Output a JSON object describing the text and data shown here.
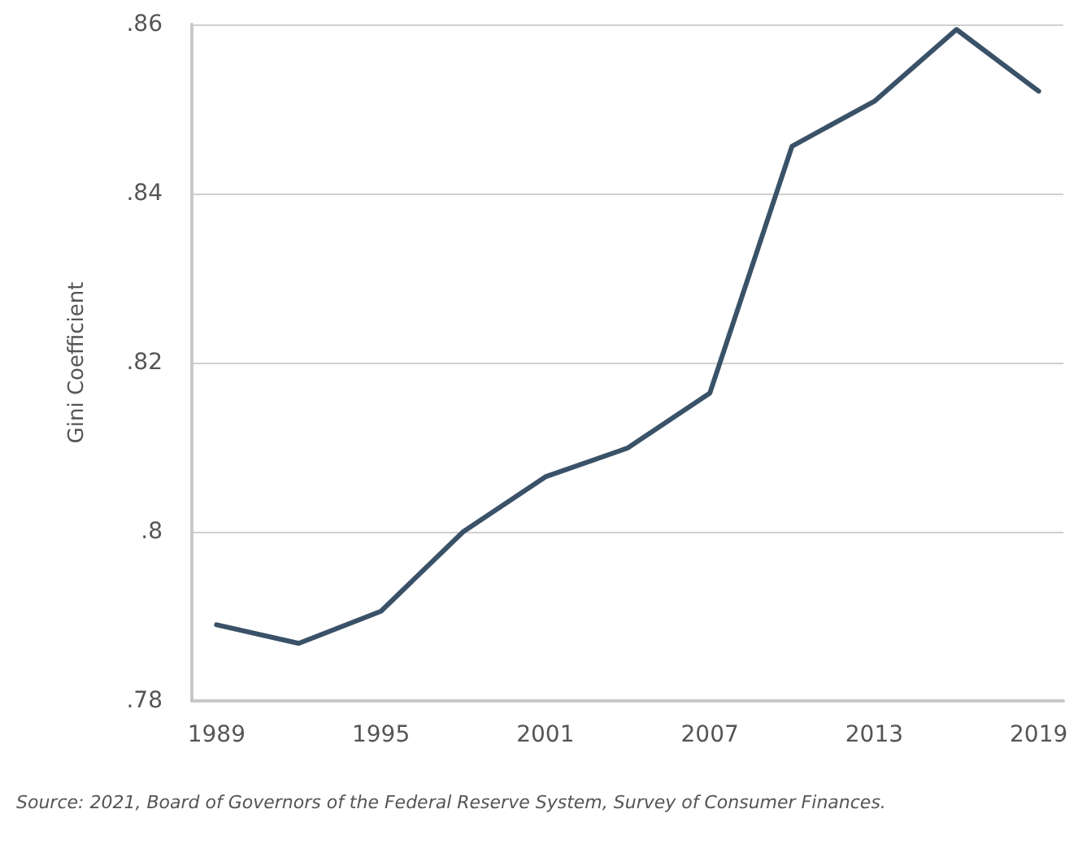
{
  "chart_data": {
    "type": "line",
    "ylabel": "Gini Coefficient",
    "annotations": [
      "Source: 2021, Board of Governors of the Federal Reserve System, Survey of Consumer Finances."
    ],
    "x": [
      1989,
      1992,
      1995,
      1998,
      2001,
      2004,
      2007,
      2010,
      2013,
      2016,
      2019
    ],
    "series": [
      {
        "color": "#3a5268",
        "values": [
          0.789,
          0.7868,
          0.7906,
          0.8,
          0.8065,
          0.8099,
          0.8164,
          0.8456,
          0.8509,
          0.8594,
          0.8521
        ]
      }
    ],
    "xlim": [
      1988.1,
      2019.9
    ],
    "xticks": [
      1989,
      1995,
      2001,
      2007,
      2013,
      2019
    ],
    "ylim": [
      0.78,
      0.86
    ],
    "yticks": [
      {
        "value": 0.78,
        "label": ".78"
      },
      {
        "value": 0.8,
        "label": ".8"
      },
      {
        "value": 0.82,
        "label": ".82"
      },
      {
        "value": 0.84,
        "label": ".84"
      },
      {
        "value": 0.86,
        "label": ".86"
      }
    ],
    "grid": "y",
    "marker": "none",
    "line_style": "solid"
  }
}
